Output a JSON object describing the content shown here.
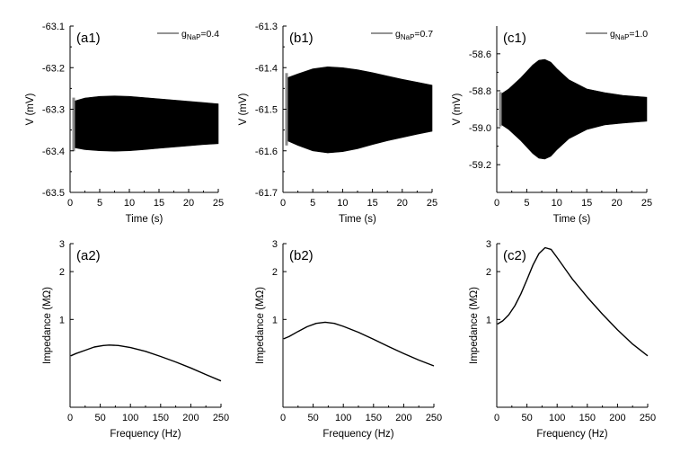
{
  "figure": {
    "colors": {
      "trace": "#000000",
      "axis": "#000000",
      "legend_line": "#555555",
      "background": "#ffffff"
    }
  },
  "chart_data": [
    {
      "id": "a1",
      "type": "area",
      "panel_label": "(a1)",
      "xlabel": "Time (s)",
      "ylabel": "V (mV)",
      "xlim": [
        0,
        25
      ],
      "ylim": [
        -63.5,
        -63.1
      ],
      "xticks": [
        0,
        5,
        10,
        15,
        20,
        25
      ],
      "xtick_labels": [
        "0",
        "5",
        "10",
        "15",
        "20",
        "25"
      ],
      "yticks": [
        -63.5,
        -63.4,
        -63.3,
        -63.2,
        -63.1
      ],
      "ytick_labels": [
        "-63.5",
        "-63.4",
        "-63.3",
        "-63.2",
        "-63.1"
      ],
      "legend": {
        "prefix": "g",
        "subscript": "NaP",
        "suffix": "=0.4",
        "position": "top-right"
      },
      "envelope": {
        "x": [
          0.6,
          2.5,
          5,
          7.5,
          10,
          12.5,
          15,
          17.5,
          20,
          22.5,
          25
        ],
        "upper": [
          -63.281,
          -63.273,
          -63.269,
          -63.268,
          -63.269,
          -63.272,
          -63.275,
          -63.278,
          -63.281,
          -63.284,
          -63.287
        ],
        "lower": [
          -63.392,
          -63.397,
          -63.4,
          -63.401,
          -63.4,
          -63.397,
          -63.394,
          -63.391,
          -63.388,
          -63.385,
          -63.383
        ]
      }
    },
    {
      "id": "b1",
      "type": "area",
      "panel_label": "(b1)",
      "xlabel": "Time (s)",
      "ylabel": "V (mV)",
      "xlim": [
        0,
        25
      ],
      "ylim": [
        -61.7,
        -61.3
      ],
      "xticks": [
        0,
        5,
        10,
        15,
        20,
        25
      ],
      "xtick_labels": [
        "0",
        "5",
        "10",
        "15",
        "20",
        "25"
      ],
      "yticks": [
        -61.7,
        -61.6,
        -61.5,
        -61.4,
        -61.3
      ],
      "ytick_labels": [
        "-61.7",
        "-61.6",
        "-61.5",
        "-61.4",
        "-61.3"
      ],
      "legend": {
        "prefix": "g",
        "subscript": "NaP",
        "suffix": "=0.7",
        "position": "top-right"
      },
      "envelope": {
        "x": [
          0.6,
          2.5,
          5,
          7.5,
          10,
          12.5,
          15,
          17.5,
          20,
          22.5,
          25
        ],
        "upper": [
          -61.425,
          -61.415,
          -61.403,
          -61.398,
          -61.4,
          -61.405,
          -61.412,
          -61.42,
          -61.428,
          -61.435,
          -61.442
        ],
        "lower": [
          -61.575,
          -61.587,
          -61.6,
          -61.605,
          -61.602,
          -61.595,
          -61.585,
          -61.576,
          -61.568,
          -61.56,
          -61.553
        ]
      }
    },
    {
      "id": "c1",
      "type": "area",
      "panel_label": "(c1)",
      "xlabel": "Time (s)",
      "ylabel": "V (mV)",
      "xlim": [
        0,
        25
      ],
      "ylim": [
        -59.35,
        -58.45
      ],
      "xticks": [
        0,
        5,
        10,
        15,
        20,
        25
      ],
      "xtick_labels": [
        "0",
        "5",
        "10",
        "15",
        "20",
        "25"
      ],
      "yticks": [
        -59.2,
        -59.0,
        -58.8,
        -58.6
      ],
      "ytick_labels": [
        "-59.2",
        "-59.0",
        "-58.8",
        "-58.6"
      ],
      "legend": {
        "prefix": "g",
        "subscript": "NaP",
        "suffix": "=1.0",
        "position": "top-right"
      },
      "envelope": {
        "x": [
          0.6,
          2,
          4,
          6,
          7,
          8,
          9,
          10,
          12,
          15,
          18,
          21,
          25
        ],
        "upper": [
          -58.82,
          -58.79,
          -58.73,
          -58.66,
          -58.635,
          -58.63,
          -58.645,
          -58.68,
          -58.74,
          -58.79,
          -58.81,
          -58.825,
          -58.835
        ],
        "lower": [
          -58.98,
          -59.01,
          -59.07,
          -59.14,
          -59.165,
          -59.17,
          -59.155,
          -59.12,
          -59.06,
          -59.01,
          -58.985,
          -58.975,
          -58.965
        ]
      }
    },
    {
      "id": "a2",
      "type": "line",
      "panel_label": "(a2)",
      "xlabel": "Frequency (Hz)",
      "ylabel": "Impedance (MΩ)",
      "xlim": [
        0,
        250
      ],
      "ylim": [
        0.28,
        3.0
      ],
      "yscale": "log",
      "xticks": [
        0,
        50,
        100,
        150,
        200,
        250
      ],
      "xtick_labels": [
        "0",
        "50",
        "100",
        "150",
        "200",
        "250"
      ],
      "yticks": [
        1,
        2,
        3
      ],
      "ytick_labels": [
        "1",
        "2",
        "3"
      ],
      "x": [
        1,
        10,
        25,
        40,
        55,
        65,
        80,
        100,
        125,
        150,
        175,
        200,
        225,
        250
      ],
      "y": [
        0.59,
        0.61,
        0.64,
        0.67,
        0.685,
        0.69,
        0.685,
        0.665,
        0.63,
        0.585,
        0.54,
        0.495,
        0.45,
        0.41
      ]
    },
    {
      "id": "b2",
      "type": "line",
      "panel_label": "(b2)",
      "xlabel": "Frequency (Hz)",
      "ylabel": "Impedance (MΩ)",
      "xlim": [
        0,
        250
      ],
      "ylim": [
        0.28,
        3.0
      ],
      "yscale": "log",
      "xticks": [
        0,
        50,
        100,
        150,
        200,
        250
      ],
      "xtick_labels": [
        "0",
        "50",
        "100",
        "150",
        "200",
        "250"
      ],
      "yticks": [
        1,
        2,
        3
      ],
      "ytick_labels": [
        "1",
        "2",
        "3"
      ],
      "x": [
        1,
        10,
        25,
        40,
        55,
        70,
        85,
        100,
        125,
        150,
        175,
        200,
        225,
        250
      ],
      "y": [
        0.755,
        0.78,
        0.84,
        0.9,
        0.945,
        0.96,
        0.945,
        0.905,
        0.83,
        0.75,
        0.675,
        0.61,
        0.555,
        0.51
      ]
    },
    {
      "id": "c2",
      "type": "line",
      "panel_label": "(c2)",
      "xlabel": "Frequency (Hz)",
      "ylabel": "Impedance (MΩ)",
      "xlim": [
        0,
        250
      ],
      "ylim": [
        0.28,
        3.0
      ],
      "yscale": "log",
      "xticks": [
        0,
        50,
        100,
        150,
        200,
        250
      ],
      "xtick_labels": [
        "0",
        "50",
        "100",
        "150",
        "200",
        "250"
      ],
      "yticks": [
        1,
        2,
        3
      ],
      "ytick_labels": [
        "1",
        "2",
        "3"
      ],
      "x": [
        1,
        10,
        20,
        30,
        40,
        50,
        60,
        70,
        80,
        90,
        100,
        125,
        150,
        175,
        200,
        225,
        250
      ],
      "y": [
        0.935,
        0.98,
        1.07,
        1.22,
        1.45,
        1.78,
        2.2,
        2.6,
        2.83,
        2.76,
        2.45,
        1.8,
        1.38,
        1.08,
        0.86,
        0.7,
        0.59
      ]
    }
  ]
}
